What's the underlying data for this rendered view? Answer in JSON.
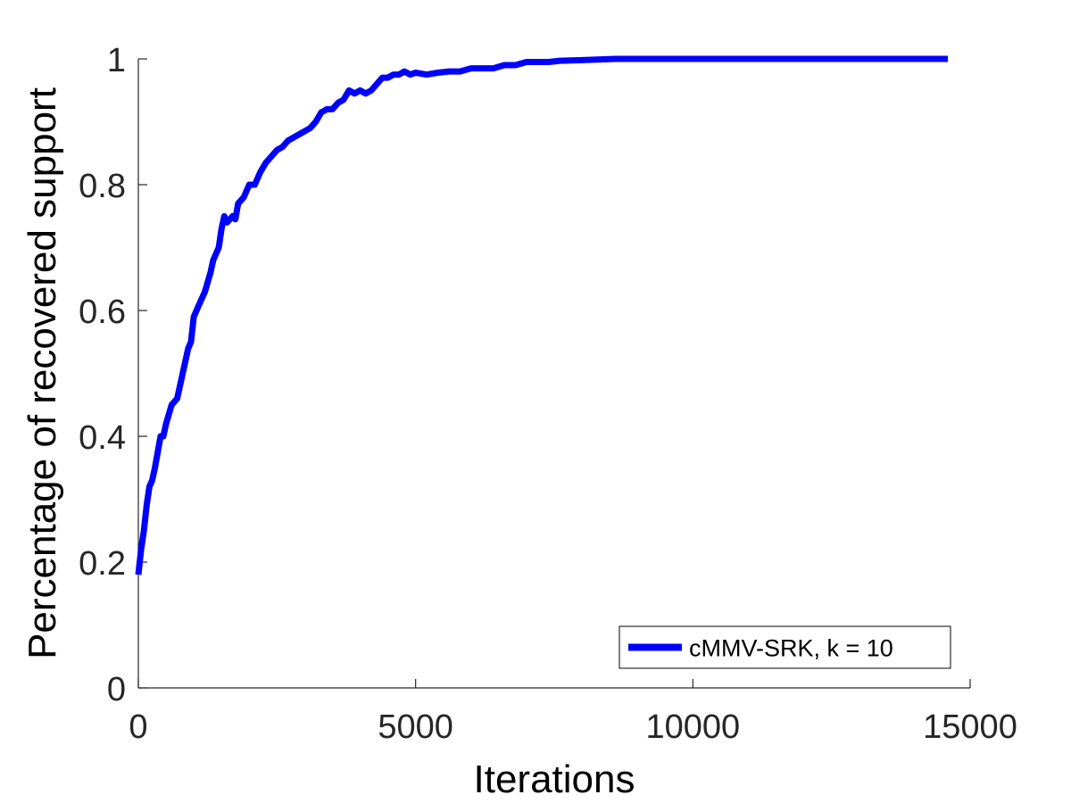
{
  "chart_data": {
    "type": "line",
    "title": "",
    "xlabel": "Iterations",
    "ylabel": "Percentage of recovered support",
    "xlim": [
      0,
      15000
    ],
    "ylim": [
      0,
      1
    ],
    "xticks": [
      0,
      5000,
      10000,
      15000
    ],
    "xtick_labels": [
      "0",
      "5000",
      "10000",
      "15000"
    ],
    "yticks": [
      0,
      0.2,
      0.4,
      0.6,
      0.8,
      1
    ],
    "ytick_labels": [
      "0",
      "0.2",
      "0.4",
      "0.6",
      "0.8",
      "1"
    ],
    "grid": false,
    "legend_position": "bottom-right",
    "series": [
      {
        "name": "cMMV-SRK, k = 10",
        "color": "#0000ff",
        "x": [
          0,
          50,
          100,
          150,
          200,
          250,
          300,
          400,
          450,
          500,
          600,
          700,
          750,
          800,
          900,
          950,
          1000,
          1100,
          1200,
          1300,
          1350,
          1450,
          1500,
          1550,
          1600,
          1700,
          1750,
          1800,
          1900,
          2000,
          2100,
          2200,
          2300,
          2400,
          2500,
          2600,
          2700,
          2800,
          2900,
          3000,
          3100,
          3200,
          3300,
          3400,
          3500,
          3600,
          3700,
          3800,
          3900,
          4000,
          4100,
          4200,
          4300,
          4400,
          4500,
          4600,
          4700,
          4800,
          4900,
          5000,
          5200,
          5400,
          5600,
          5800,
          6000,
          6200,
          6400,
          6600,
          6800,
          7000,
          7200,
          7400,
          7600,
          8000,
          8600,
          9000,
          10000,
          11000,
          12000,
          13000,
          14000,
          14600
        ],
        "values": [
          0.18,
          0.22,
          0.25,
          0.29,
          0.32,
          0.33,
          0.35,
          0.4,
          0.4,
          0.42,
          0.45,
          0.46,
          0.48,
          0.5,
          0.54,
          0.55,
          0.59,
          0.61,
          0.63,
          0.66,
          0.68,
          0.7,
          0.73,
          0.75,
          0.74,
          0.75,
          0.745,
          0.77,
          0.78,
          0.8,
          0.8,
          0.82,
          0.835,
          0.845,
          0.855,
          0.86,
          0.87,
          0.875,
          0.88,
          0.885,
          0.89,
          0.9,
          0.915,
          0.92,
          0.92,
          0.93,
          0.935,
          0.95,
          0.945,
          0.95,
          0.945,
          0.95,
          0.96,
          0.97,
          0.97,
          0.975,
          0.975,
          0.98,
          0.975,
          0.978,
          0.975,
          0.978,
          0.98,
          0.98,
          0.985,
          0.985,
          0.985,
          0.99,
          0.99,
          0.995,
          0.995,
          0.995,
          0.997,
          0.998,
          1.0,
          1.0,
          1.0,
          1.0,
          1.0,
          1.0,
          1.0,
          1.0
        ]
      }
    ]
  }
}
